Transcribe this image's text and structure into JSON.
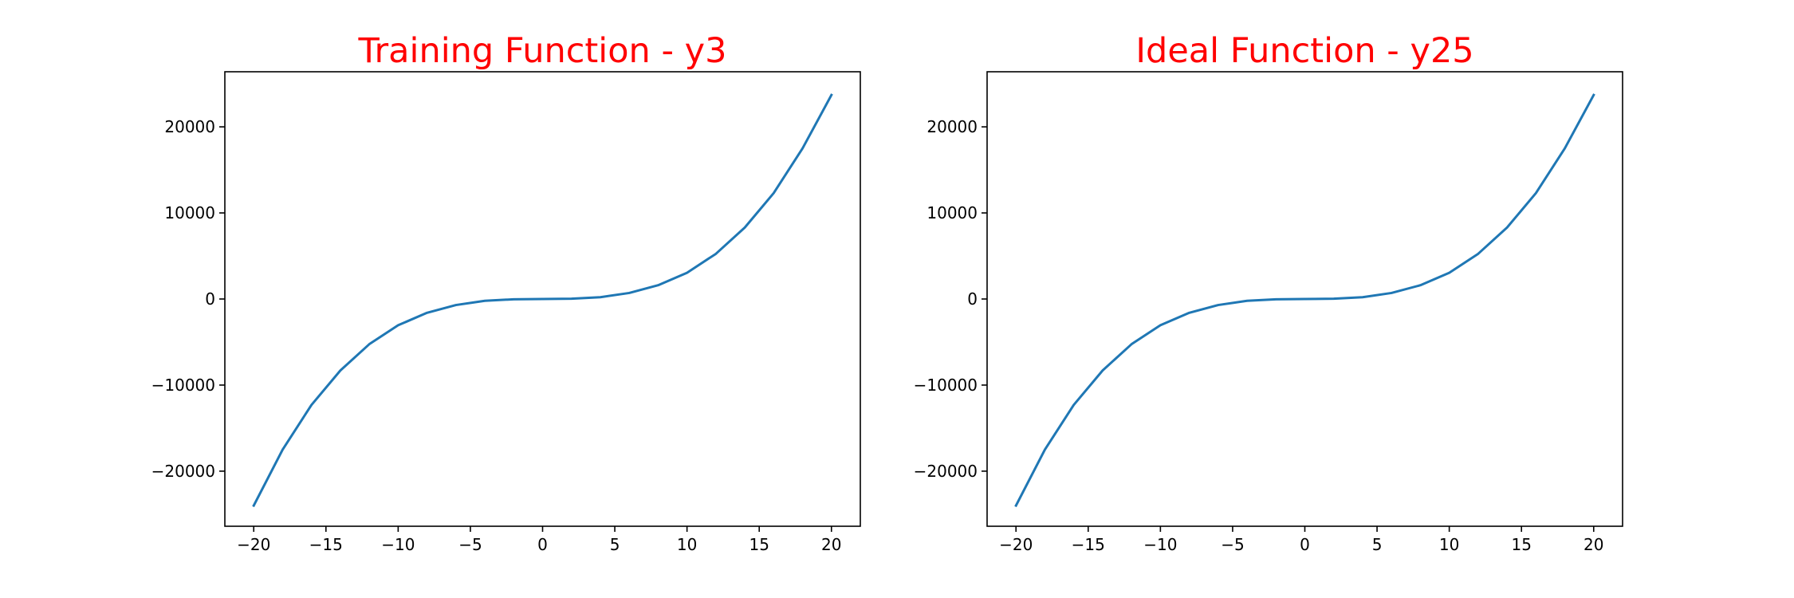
{
  "chart_data": [
    {
      "type": "line",
      "title": "Training Function - y3",
      "xlabel": "",
      "ylabel": "",
      "xlim": [
        -22,
        22
      ],
      "ylim": [
        -26400,
        26400
      ],
      "x_ticks": [
        -20,
        -15,
        -10,
        -5,
        0,
        5,
        10,
        15,
        20
      ],
      "x_tick_labels": [
        "−20",
        "−15",
        "−10",
        "−5",
        "0",
        "5",
        "10",
        "15",
        "20"
      ],
      "y_ticks": [
        -20000,
        -10000,
        0,
        10000,
        20000
      ],
      "y_tick_labels": [
        "−20000",
        "−10000",
        "0",
        "10000",
        "20000"
      ],
      "grid": false,
      "series": [
        {
          "x": [
            -20,
            -18,
            -16,
            -14,
            -12,
            -10,
            -8,
            -6,
            -4,
            -2,
            0,
            2,
            4,
            6,
            8,
            10,
            12,
            14,
            16,
            18,
            20
          ],
          "y": [
            -24000,
            -17500,
            -12300,
            -8300,
            -5250,
            -3050,
            -1600,
            -700,
            -210,
            -30,
            0,
            30,
            210,
            700,
            1600,
            3050,
            5250,
            8300,
            12300,
            17500,
            23700
          ]
        }
      ]
    },
    {
      "type": "line",
      "title": "Ideal Function - y25",
      "xlabel": "",
      "ylabel": "",
      "xlim": [
        -22,
        22
      ],
      "ylim": [
        -26400,
        26400
      ],
      "x_ticks": [
        -20,
        -15,
        -10,
        -5,
        0,
        5,
        10,
        15,
        20
      ],
      "x_tick_labels": [
        "−20",
        "−15",
        "−10",
        "−5",
        "0",
        "5",
        "10",
        "15",
        "20"
      ],
      "y_ticks": [
        -20000,
        -10000,
        0,
        10000,
        20000
      ],
      "y_tick_labels": [
        "−20000",
        "−10000",
        "0",
        "10000",
        "20000"
      ],
      "grid": false,
      "series": [
        {
          "x": [
            -20,
            -18,
            -16,
            -14,
            -12,
            -10,
            -8,
            -6,
            -4,
            -2,
            0,
            2,
            4,
            6,
            8,
            10,
            12,
            14,
            16,
            18,
            20
          ],
          "y": [
            -24000,
            -17500,
            -12300,
            -8300,
            -5250,
            -3050,
            -1600,
            -700,
            -210,
            -30,
            0,
            30,
            210,
            700,
            1600,
            3050,
            5250,
            8300,
            12300,
            17500,
            23700
          ]
        }
      ]
    }
  ],
  "colors": {
    "title": "#ff0000",
    "series": "#1f77b4",
    "axes": "#000000",
    "background": "#ffffff"
  }
}
